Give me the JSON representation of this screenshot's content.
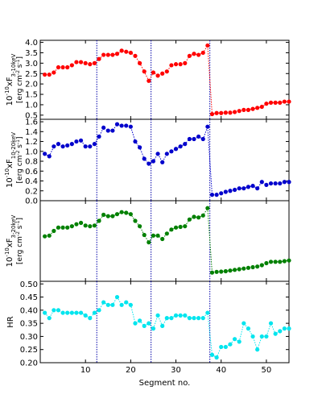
{
  "chart_data": {
    "type": "scatter",
    "xlabel": "Segment no.",
    "xlim": [
      0,
      55
    ],
    "xticks": [
      10,
      20,
      30,
      40,
      50
    ],
    "vlines": [
      12.5,
      24.5,
      37.5
    ],
    "panels": [
      {
        "ylabel": "10$^{-10}$xF$_{3-10keV}$",
        "yunits": "[erg cm$^{-2}$ s$^{-1}$]",
        "ylim": [
          0.3,
          4.1
        ],
        "yticks": [
          0.5,
          1.0,
          1.5,
          2.0,
          2.5,
          3.0,
          3.5,
          4.0
        ],
        "color": "#ff0000",
        "series": [
          {
            "x": [
              1,
              2,
              3,
              4,
              5,
              6,
              7,
              8,
              9,
              10,
              11,
              12,
              13,
              14,
              15,
              16,
              17,
              18,
              19,
              20,
              21,
              22,
              23,
              24,
              25,
              26,
              27,
              28,
              29,
              30,
              31,
              32,
              33,
              34,
              35,
              36,
              37,
              38,
              39,
              40,
              41,
              42,
              43,
              44,
              45,
              46,
              47,
              48,
              49,
              50,
              51,
              52,
              53,
              54,
              55
            ],
            "y": [
              2.45,
              2.45,
              2.55,
              2.8,
              2.8,
              2.8,
              2.9,
              3.05,
              3.05,
              3.0,
              2.95,
              3.0,
              3.2,
              3.4,
              3.4,
              3.4,
              3.45,
              3.6,
              3.55,
              3.5,
              3.35,
              3.0,
              2.6,
              2.15,
              2.55,
              2.4,
              2.5,
              2.6,
              2.9,
              2.95,
              2.95,
              3.0,
              3.35,
              3.45,
              3.4,
              3.5,
              3.85,
              0.55,
              0.6,
              0.6,
              0.62,
              0.62,
              0.65,
              0.7,
              0.75,
              0.75,
              0.8,
              0.85,
              0.9,
              1.05,
              1.1,
              1.1,
              1.1,
              1.15,
              1.15
            ]
          }
        ]
      },
      {
        "ylabel": "10$^{-10}$xF$_{10-20keV}$",
        "yunits": "[erg cm$^{-2}$ s$^{-1}$]",
        "ylim": [
          0.0,
          1.65
        ],
        "yticks": [
          0.0,
          0.2,
          0.4,
          0.6,
          0.8,
          1.0,
          1.2,
          1.4,
          1.6
        ],
        "color": "#0000cc",
        "series": [
          {
            "x": [
              1,
              2,
              3,
              4,
              5,
              6,
              7,
              8,
              9,
              10,
              11,
              12,
              13,
              14,
              15,
              16,
              17,
              18,
              19,
              20,
              21,
              22,
              23,
              24,
              25,
              26,
              27,
              28,
              29,
              30,
              31,
              32,
              33,
              34,
              35,
              36,
              37,
              38,
              39,
              40,
              41,
              42,
              43,
              44,
              45,
              46,
              47,
              48,
              49,
              50,
              51,
              52,
              53,
              54,
              55
            ],
            "y": [
              0.95,
              0.9,
              1.1,
              1.15,
              1.1,
              1.12,
              1.15,
              1.2,
              1.22,
              1.1,
              1.1,
              1.15,
              1.3,
              1.48,
              1.42,
              1.42,
              1.55,
              1.52,
              1.52,
              1.5,
              1.2,
              1.08,
              0.85,
              0.75,
              0.8,
              0.95,
              0.78,
              0.95,
              1.0,
              1.05,
              1.1,
              1.15,
              1.25,
              1.25,
              1.3,
              1.25,
              1.5,
              0.12,
              0.12,
              0.15,
              0.18,
              0.2,
              0.22,
              0.25,
              0.25,
              0.28,
              0.3,
              0.25,
              0.38,
              0.32,
              0.35,
              0.35,
              0.35,
              0.38,
              0.38
            ]
          }
        ]
      },
      {
        "ylabel": "10$^{-10}$xF$_{3-20keV}$",
        "yunits": "[erg cm$^{-2}$ s$^{-1}$]",
        "ylim": [
          0.0,
          6.0
        ],
        "yticks": [],
        "color": "#008000",
        "series": [
          {
            "x": [
              1,
              2,
              3,
              4,
              5,
              6,
              7,
              8,
              9,
              10,
              11,
              12,
              13,
              14,
              15,
              16,
              17,
              18,
              19,
              20,
              21,
              22,
              23,
              24,
              25,
              26,
              27,
              28,
              29,
              30,
              31,
              32,
              33,
              34,
              35,
              36,
              37,
              38,
              39,
              40,
              41,
              42,
              43,
              44,
              45,
              46,
              47,
              48,
              49,
              50,
              51,
              52,
              53,
              54,
              55
            ],
            "y": [
              3.35,
              3.4,
              3.75,
              4.0,
              4.0,
              4.0,
              4.1,
              4.25,
              4.35,
              4.15,
              4.1,
              4.15,
              4.5,
              4.95,
              4.85,
              4.85,
              5.0,
              5.15,
              5.1,
              5.0,
              4.5,
              4.1,
              3.45,
              2.9,
              3.4,
              3.4,
              3.15,
              3.55,
              3.85,
              4.0,
              4.05,
              4.1,
              4.6,
              4.8,
              4.75,
              4.9,
              5.45,
              0.65,
              0.7,
              0.72,
              0.75,
              0.8,
              0.85,
              0.9,
              0.95,
              1.0,
              1.05,
              1.1,
              1.2,
              1.35,
              1.45,
              1.45,
              1.45,
              1.5,
              1.55
            ]
          }
        ]
      },
      {
        "ylabel": "HR",
        "yunits": "",
        "ylim": [
          0.2,
          0.51
        ],
        "yticks": [
          0.2,
          0.25,
          0.3,
          0.35,
          0.4,
          0.45,
          0.5
        ],
        "color": "#00e5ee",
        "series": [
          {
            "x": [
              1,
              2,
              3,
              4,
              5,
              6,
              7,
              8,
              9,
              10,
              11,
              12,
              13,
              14,
              15,
              16,
              17,
              18,
              19,
              20,
              21,
              22,
              23,
              24,
              25,
              26,
              27,
              28,
              29,
              30,
              31,
              32,
              33,
              34,
              35,
              36,
              37,
              38,
              39,
              40,
              41,
              42,
              43,
              44,
              45,
              46,
              47,
              48,
              49,
              50,
              51,
              52,
              53,
              54,
              55
            ],
            "y": [
              0.39,
              0.37,
              0.4,
              0.4,
              0.39,
              0.39,
              0.39,
              0.39,
              0.39,
              0.38,
              0.37,
              0.39,
              0.4,
              0.43,
              0.42,
              0.42,
              0.45,
              0.42,
              0.43,
              0.42,
              0.35,
              0.36,
              0.34,
              0.35,
              0.33,
              0.38,
              0.34,
              0.37,
              0.37,
              0.38,
              0.38,
              0.38,
              0.37,
              0.37,
              0.37,
              0.37,
              0.39,
              0.23,
              0.22,
              0.26,
              0.26,
              0.27,
              0.29,
              0.28,
              0.35,
              0.33,
              0.3,
              0.25,
              0.3,
              0.3,
              0.35,
              0.31,
              0.32,
              0.33,
              0.33
            ]
          }
        ]
      }
    ]
  }
}
